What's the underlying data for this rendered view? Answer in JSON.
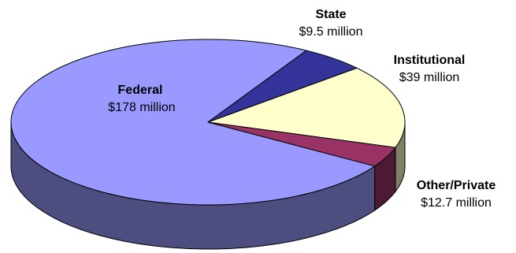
{
  "chart_data": {
    "type": "pie",
    "three_d": true,
    "legend": "none",
    "unit": "million USD",
    "slices": [
      {
        "name": "Federal",
        "value": 178,
        "value_label": "$178 million",
        "color": "#9999ff",
        "side_color": "#4d4d80"
      },
      {
        "name": "State",
        "value": 9.5,
        "value_label": "$9.5 million",
        "color": "#993366",
        "side_color": "#4d1a33"
      },
      {
        "name": "Institutional",
        "value": 39,
        "value_label": "$39 million",
        "color": "#ffffcc",
        "side_color": "#808066"
      },
      {
        "name": "Other/Private",
        "value": 12.7,
        "value_label": "$12.7 million",
        "color": "#333399",
        "side_color": "#1a1a4d"
      }
    ]
  }
}
